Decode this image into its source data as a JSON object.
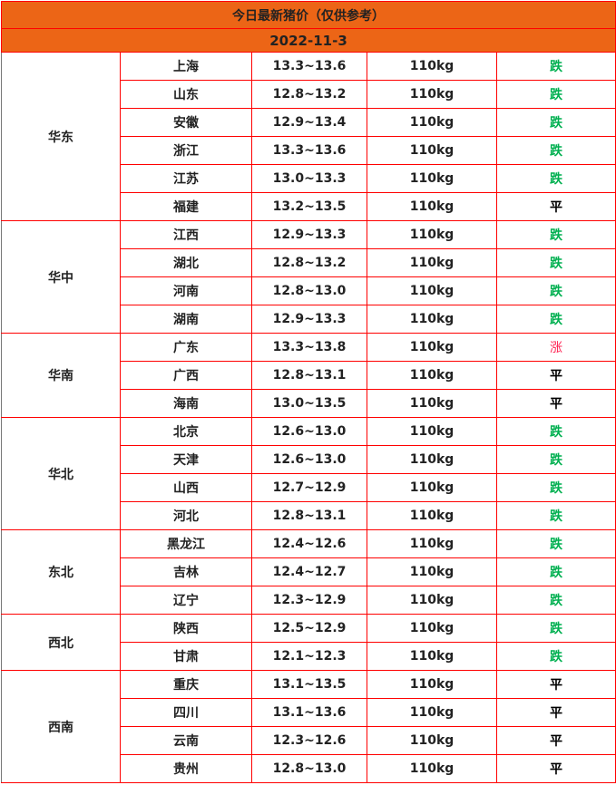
{
  "title": "今日最新猪价（仅供参考）",
  "date": "2022-11-3",
  "colors": {
    "header": "#ec6516",
    "border": "#ff0000",
    "down": "#00b050",
    "up": "#ff2050",
    "flat": "#000000"
  },
  "regions": [
    {
      "name": "华东",
      "rows": [
        [
          "上海",
          "13.3~13.6",
          "110kg",
          "跌"
        ],
        [
          "山东",
          "12.8~13.2",
          "110kg",
          "跌"
        ],
        [
          "安徽",
          "12.9~13.4",
          "110kg",
          "跌"
        ],
        [
          "浙江",
          "13.3~13.6",
          "110kg",
          "跌"
        ],
        [
          "江苏",
          "13.0~13.3",
          "110kg",
          "跌"
        ],
        [
          "福建",
          "13.2~13.5",
          "110kg",
          "平"
        ]
      ]
    },
    {
      "name": "华中",
      "rows": [
        [
          "江西",
          "12.9~13.3",
          "110kg",
          "跌"
        ],
        [
          "湖北",
          "12.8~13.2",
          "110kg",
          "跌"
        ],
        [
          "河南",
          "12.8~13.0",
          "110kg",
          "跌"
        ],
        [
          "湖南",
          "12.9~13.3",
          "110kg",
          "跌"
        ]
      ]
    },
    {
      "name": "华南",
      "rows": [
        [
          "广东",
          "13.3~13.8",
          "110kg",
          "涨"
        ],
        [
          "广西",
          "12.8~13.1",
          "110kg",
          "平"
        ],
        [
          "海南",
          "13.0~13.5",
          "110kg",
          "平"
        ]
      ]
    },
    {
      "name": "华北",
      "rows": [
        [
          "北京",
          "12.6~13.0",
          "110kg",
          "跌"
        ],
        [
          "天津",
          "12.6~13.0",
          "110kg",
          "跌"
        ],
        [
          "山西",
          "12.7~12.9",
          "110kg",
          "跌"
        ],
        [
          "河北",
          "12.8~13.1",
          "110kg",
          "跌"
        ]
      ]
    },
    {
      "name": "东北",
      "rows": [
        [
          "黑龙江",
          "12.4~12.6",
          "110kg",
          "跌"
        ],
        [
          "吉林",
          "12.4~12.7",
          "110kg",
          "跌"
        ],
        [
          "辽宁",
          "12.3~12.9",
          "110kg",
          "跌"
        ]
      ]
    },
    {
      "name": "西北",
      "rows": [
        [
          "陕西",
          "12.5~12.9",
          "110kg",
          "跌"
        ],
        [
          "甘肃",
          "12.1~12.3",
          "110kg",
          "跌"
        ]
      ]
    },
    {
      "name": "西南",
      "rows": [
        [
          "重庆",
          "13.1~13.5",
          "110kg",
          "平"
        ],
        [
          "四川",
          "13.1~13.6",
          "110kg",
          "平"
        ],
        [
          "云南",
          "12.3~12.6",
          "110kg",
          "平"
        ],
        [
          "贵州",
          "12.8~13.0",
          "110kg",
          "平"
        ]
      ]
    }
  ]
}
